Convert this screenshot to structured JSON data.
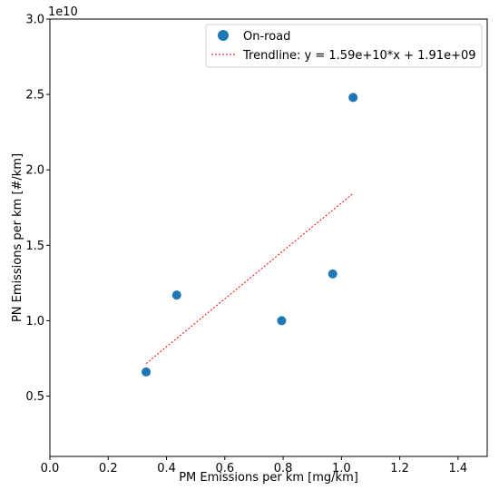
{
  "chart_data": {
    "type": "scatter",
    "xlabel": "PM Emissions per km [mg/km]",
    "ylabel": "PN Emissions per km [#/km]",
    "y_offset_label": "1e10",
    "xlim": [
      0.0,
      1.5
    ],
    "ylim": [
      0.1,
      3.0
    ],
    "x_ticks": [
      0.0,
      0.2,
      0.4,
      0.6,
      0.8,
      1.0,
      1.2,
      1.4
    ],
    "x_tick_labels": [
      "0.0",
      "0.2",
      "0.4",
      "0.6",
      "0.8",
      "1.0",
      "1.2",
      "1.4"
    ],
    "y_ticks": [
      0.5,
      1.0,
      1.5,
      2.0,
      2.5,
      3.0
    ],
    "y_tick_labels": [
      "0.5",
      "1.0",
      "1.5",
      "2.0",
      "2.5",
      "3.0"
    ],
    "grid": false,
    "legend_position": "top-right",
    "series": [
      {
        "name": "On-road",
        "type": "scatter",
        "color": "#1f77b4",
        "x": [
          0.33,
          0.435,
          0.795,
          0.97,
          1.04
        ],
        "y": [
          0.66,
          1.17,
          1.0,
          1.31,
          2.48
        ]
      },
      {
        "name": "Trendline: y = 1.59e+10*x + 1.91e+09",
        "type": "line",
        "style": "dotted",
        "color": "#ff0000",
        "x": [
          0.33,
          1.04
        ],
        "y": [
          0.716,
          1.844
        ]
      }
    ]
  }
}
